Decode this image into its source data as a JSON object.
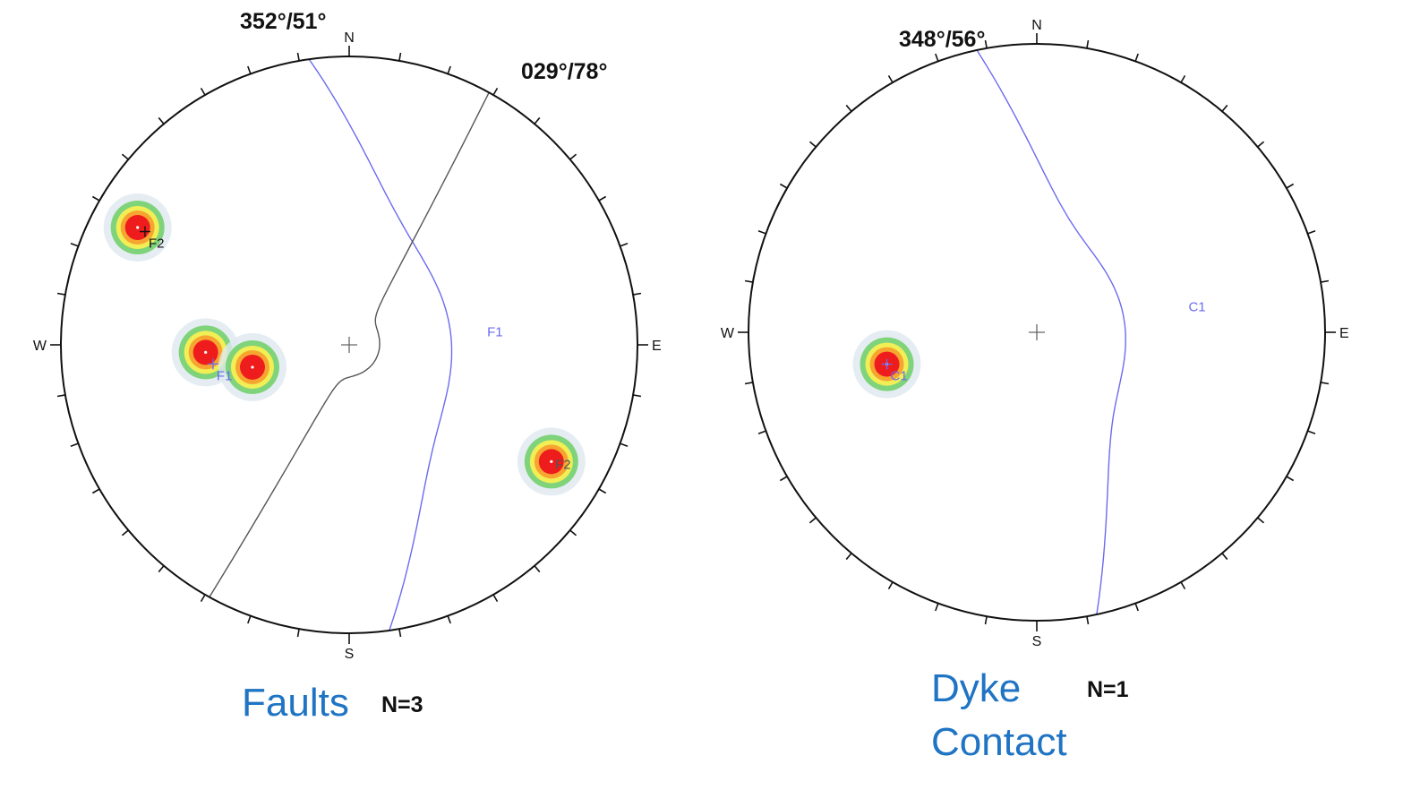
{
  "colors": {
    "primitive": "#111111",
    "great_circle_fault": "#6b6bf0",
    "great_circle_other": "#555555",
    "caption": "#1f74c4",
    "contour_red": "#ee1c1c",
    "contour_orange": "#f7a531",
    "contour_yellow": "#f1ef55",
    "contour_green": "#7fd37a",
    "contour_halo": "#dfe8f0"
  },
  "stereonets": [
    {
      "id": "faults",
      "caption": "Faults",
      "count": "N=3",
      "directions": {
        "n": "N",
        "s": "S",
        "e": "E",
        "w": "W"
      },
      "plane_labels": [
        {
          "text": "352°/51°"
        },
        {
          "text": "029°/78°"
        }
      ],
      "great_circles": [
        {
          "name": "F1",
          "strike": 352,
          "dip": 51,
          "color": "#6b6bf0",
          "label": "F1"
        },
        {
          "name": "F2",
          "strike": 29,
          "dip": 78,
          "color": "#555555",
          "label": "F2"
        }
      ],
      "poles": [
        {
          "label": "F1",
          "trend": 262,
          "plunge": 39,
          "color": "#6b6bf0"
        },
        {
          "label": "F2",
          "trend": 299,
          "plunge": 12,
          "color": "#111111"
        }
      ],
      "density_spots": [
        {
          "trend": 267,
          "plunge": 37
        },
        {
          "trend": 257,
          "plunge": 52
        },
        {
          "trend": 299,
          "plunge": 10
        },
        {
          "trend": 120,
          "plunge": 12
        }
      ]
    },
    {
      "id": "dyke",
      "caption_line1": "Dyke",
      "caption_line2": "Contact",
      "count": "N=1",
      "directions": {
        "n": "N",
        "s": "S",
        "e": "E",
        "w": "W"
      },
      "plane_labels": [
        {
          "text": "348°/56°"
        }
      ],
      "great_circles": [
        {
          "name": "C1",
          "strike": 348,
          "dip": 56,
          "color": "#6b6bf0",
          "label": "C1"
        }
      ],
      "poles": [
        {
          "label": "C1",
          "trend": 258,
          "plunge": 34,
          "color": "#6b6bf0"
        }
      ],
      "density_spots": [
        {
          "trend": 258,
          "plunge": 34
        }
      ]
    }
  ]
}
